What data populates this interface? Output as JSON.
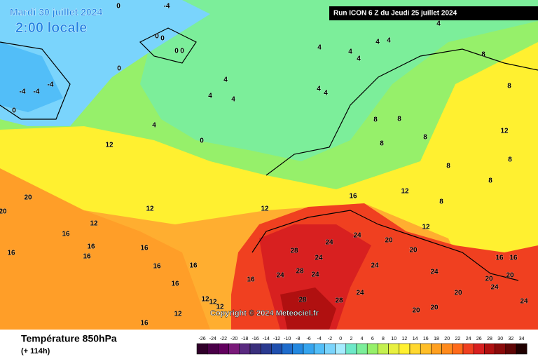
{
  "header": {
    "date": "Mardi 30 juillet 2024",
    "time": "2:00 locale",
    "run": "Run ICON 6 Z du Jeudi 25 juillet 2024"
  },
  "copyright": "Copyright © 2024 Meteociel.fr",
  "footer": {
    "title": "Température 850hPa",
    "lead": "(+ 114h)"
  },
  "contour_labels": [
    0,
    -4,
    0,
    0,
    0,
    0,
    0,
    0,
    -4,
    -4,
    -4,
    4,
    4,
    4,
    4,
    0,
    4,
    4,
    4,
    4,
    4,
    4,
    4,
    4,
    8,
    8,
    8,
    8,
    8,
    8,
    8,
    8,
    8,
    8,
    12,
    12,
    12,
    12,
    12,
    12,
    12,
    20,
    20,
    16,
    16,
    16,
    16,
    16,
    16,
    16,
    16,
    16,
    16,
    28,
    28,
    28,
    28,
    24,
    24,
    24,
    24,
    24,
    24,
    24,
    20,
    20,
    24,
    16,
    16,
    20,
    24,
    20,
    20,
    20,
    20,
    24,
    12,
    12,
    12,
    12,
    16
  ],
  "legend": {
    "ticks": [
      -26,
      -24,
      -22,
      -20,
      -18,
      -16,
      -14,
      -12,
      -10,
      -8,
      -6,
      -4,
      -2,
      0,
      2,
      4,
      6,
      8,
      10,
      12,
      14,
      16,
      18,
      20,
      22,
      24,
      26,
      28,
      30,
      32,
      34
    ],
    "colors": [
      "#30002a",
      "#4a0048",
      "#62005e",
      "#7a1a7a",
      "#5a2a80",
      "#3a2f7c",
      "#2a3a90",
      "#1f4fae",
      "#1f6ccc",
      "#2388e0",
      "#35a4ee",
      "#52bef8",
      "#7ad4fc",
      "#a6ecff",
      "#6ee8c8",
      "#7cee9a",
      "#96f06a",
      "#c4f050",
      "#e8f040",
      "#fff030",
      "#ffd830",
      "#ffbe28",
      "#ffa020",
      "#ff8a1c",
      "#ff6a1a",
      "#f04020",
      "#d82020",
      "#b01010",
      "#8a0a0a",
      "#600505",
      "#200000"
    ]
  }
}
